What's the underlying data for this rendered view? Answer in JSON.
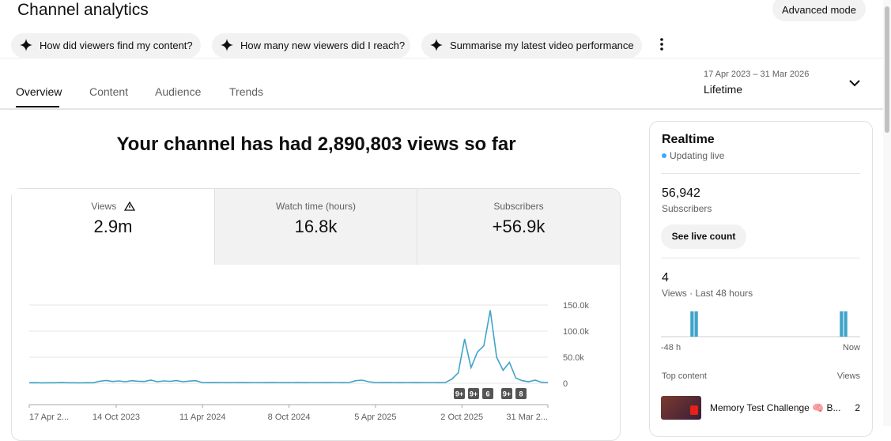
{
  "header": {
    "title": "Channel analytics",
    "advanced_button": "Advanced mode",
    "chips": [
      "How did viewers find my content?",
      "How many new viewers did I reach?",
      "Summarise my latest video performance"
    ]
  },
  "tabs": [
    "Overview",
    "Content",
    "Audience",
    "Trends"
  ],
  "date_range": {
    "range": "17 Apr 2023 – 31 Mar 2026",
    "label": "Lifetime"
  },
  "headline": "Your channel has had 2,890,803 views so far",
  "metrics": [
    {
      "label": "Views",
      "value": "2.9m"
    },
    {
      "label": "Watch time (hours)",
      "value": "16.8k"
    },
    {
      "label": "Subscribers",
      "value": "+56.9k"
    }
  ],
  "chart_data": {
    "type": "line",
    "color": "#3fa4c9",
    "xticks": [
      "17 Apr 2...",
      "14 Oct 2023",
      "11 Apr 2024",
      "8 Oct 2024",
      "5 Apr 2025",
      "2 Oct 2025",
      "31 Mar 2..."
    ],
    "values": [
      1000,
      1200,
      900,
      1100,
      1000,
      1300,
      1000,
      1100,
      900,
      1200,
      1000,
      4000,
      5500,
      3500,
      4500,
      3000,
      5000,
      4000,
      3500,
      6000,
      3000,
      4500,
      3800,
      5200,
      3000,
      4200,
      5000,
      1500,
      1400,
      1600,
      1500,
      1300,
      1500,
      1600,
      1400,
      1500,
      1500,
      1400,
      1600,
      1500,
      1300,
      1500,
      1600,
      1400,
      1500,
      1500,
      1400,
      1600,
      1500,
      1300,
      1500,
      5000,
      6000,
      3000,
      1500,
      1400,
      1600,
      1500,
      1300,
      1500,
      1600,
      1400,
      1500,
      1500,
      1400,
      1600,
      8000,
      20000,
      85000,
      30000,
      60000,
      72000,
      140000,
      50000,
      25000,
      40000,
      10000,
      5000,
      3000,
      6000,
      2000,
      1500
    ],
    "ylim": [
      0,
      150000
    ],
    "yticks": [
      0,
      {
        "value": 50000,
        "label": "50.0k"
      },
      {
        "value": 100000,
        "label": "100.0k"
      },
      {
        "value": 150000,
        "label": "150.0k"
      }
    ],
    "grid": true,
    "badges": [
      "9+",
      "9+",
      "6",
      "9+",
      "8"
    ]
  },
  "realtime": {
    "title": "Realtime",
    "status": "Updating live",
    "subscribers": "56,942",
    "subscribers_label": "Subscribers",
    "button": "See live count",
    "views": "4",
    "views_label": "Views · Last 48 hours",
    "bars": [
      0,
      0,
      0,
      0,
      0,
      0,
      0,
      1,
      1,
      0,
      0,
      0,
      0,
      0,
      0,
      0,
      0,
      0,
      0,
      0,
      0,
      0,
      0,
      0,
      0,
      0,
      0,
      0,
      0,
      0,
      0,
      0,
      0,
      0,
      0,
      0,
      0,
      0,
      0,
      0,
      0,
      0,
      0,
      1,
      1,
      0,
      0,
      0
    ],
    "start_label": "-48 h",
    "end_label": "Now",
    "top_content_label": "Top content",
    "views_col": "Views",
    "top_content": [
      {
        "title": "Memory Test Challenge 🧠 B...",
        "views": "2"
      }
    ]
  }
}
